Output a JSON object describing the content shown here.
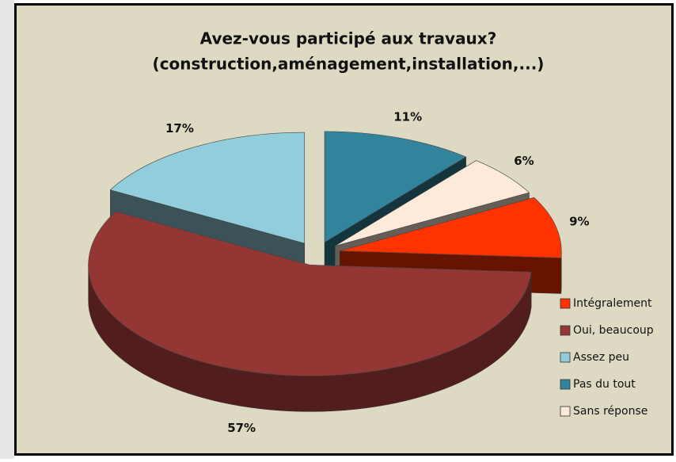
{
  "chart_data": {
    "type": "pie3d",
    "title": [
      "Avez-vous participé aux travaux?",
      "(construction,aménagement,installation,...)"
    ],
    "categories": [
      "Intégralement",
      "Oui, beaucoup",
      "Assez peu",
      "Pas du tout",
      "Sans réponse"
    ],
    "values": [
      9,
      57,
      17,
      11,
      6
    ],
    "value_labels": [
      "9%",
      "57%",
      "17%",
      "11%",
      "6%"
    ],
    "colors": [
      "#ff3300",
      "#943634",
      "#92cddc",
      "#31849b",
      "#fdeada"
    ],
    "legend": "right"
  }
}
